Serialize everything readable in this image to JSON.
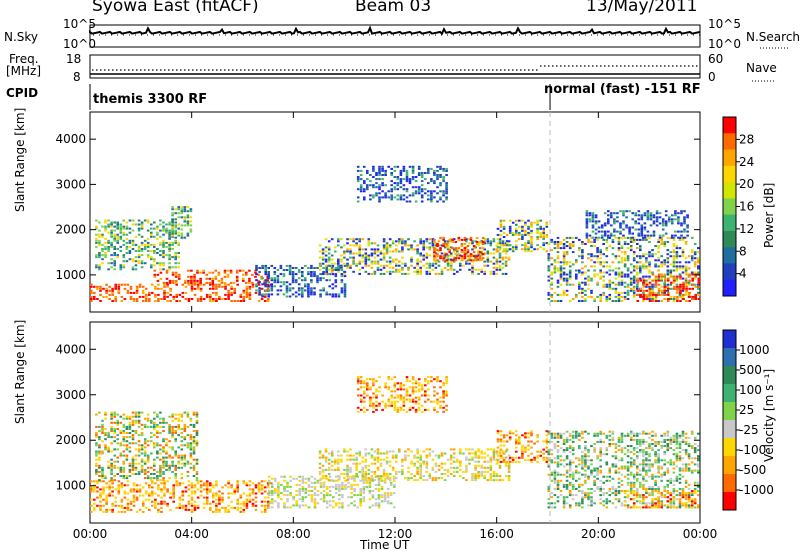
{
  "header": {
    "title": "Syowa East (fitACF)",
    "beam": "Beam 03",
    "date": "13/May/2011"
  },
  "panels": {
    "nsky": {
      "label": "N.Sky",
      "ticks": [
        "10^5",
        "10^0"
      ]
    },
    "nsearch": {
      "label": "N.Search",
      "ticks": [
        "10^5",
        "10^0"
      ]
    },
    "freq": {
      "label_line1": "Freq.",
      "label_line2": "[MHz]",
      "ticks": [
        "18",
        "8"
      ]
    },
    "nave": {
      "label": "Nave",
      "ticks": [
        "60",
        "0"
      ]
    },
    "cpid": {
      "label": "CPID",
      "segments": [
        "themis 3300 RF",
        "normal (fast) -151 RF"
      ]
    }
  },
  "chart_data": [
    {
      "type": "heatmap",
      "name": "power",
      "xlabel": "Time UT",
      "ylabel": "Slant Range [km]",
      "x_ticks": [
        "00:00",
        "04:00",
        "08:00",
        "12:00",
        "16:00",
        "20:00",
        "00:00"
      ],
      "xlim_hours": [
        0,
        24
      ],
      "y_ticks": [
        1000,
        2000,
        3000,
        4000
      ],
      "ylim": [
        180,
        4600
      ],
      "mode_change_hour": 18.1,
      "colorbar": {
        "label": "Power [dB]",
        "ticks": [
          "28",
          "24",
          "20",
          "16",
          "12",
          "8",
          "4"
        ],
        "colors": [
          "#ff0000",
          "#ff6a00",
          "#ffa500",
          "#ffd700",
          "#d2e600",
          "#7fd24a",
          "#3cb371",
          "#2e8b57",
          "#1e6fa0",
          "#1f3fbf",
          "#2020ff"
        ]
      },
      "regions": [
        {
          "t0": 0.0,
          "t1": 7.2,
          "r0": 400,
          "r1": 800,
          "level": "high"
        },
        {
          "t0": 2.5,
          "t1": 7.0,
          "r0": 800,
          "r1": 1100,
          "level": "high"
        },
        {
          "t0": 0.2,
          "t1": 3.5,
          "r0": 1100,
          "r1": 2200,
          "level": "mid"
        },
        {
          "t0": 3.2,
          "t1": 4.0,
          "r0": 1800,
          "r1": 2500,
          "level": "mid"
        },
        {
          "t0": 6.5,
          "t1": 10.0,
          "r0": 500,
          "r1": 1200,
          "level": "low"
        },
        {
          "t0": 9.0,
          "t1": 16.5,
          "r0": 1000,
          "r1": 1800,
          "level": "mixed"
        },
        {
          "t0": 13.5,
          "t1": 15.5,
          "r0": 1300,
          "r1": 1800,
          "level": "high"
        },
        {
          "t0": 16.0,
          "t1": 18.0,
          "r0": 1500,
          "r1": 2200,
          "level": "mixed"
        },
        {
          "t0": 10.5,
          "t1": 14.0,
          "r0": 2600,
          "r1": 3400,
          "level": "low"
        },
        {
          "t0": 18.0,
          "t1": 24.0,
          "r0": 400,
          "r1": 1800,
          "level": "mixed"
        },
        {
          "t0": 21.5,
          "t1": 24.0,
          "r0": 400,
          "r1": 1000,
          "level": "high"
        },
        {
          "t0": 19.5,
          "t1": 23.5,
          "r0": 1800,
          "r1": 2400,
          "level": "low"
        }
      ]
    },
    {
      "type": "heatmap",
      "name": "velocity",
      "xlabel": "Time UT",
      "ylabel": "Slant Range [km]",
      "x_ticks": [
        "00:00",
        "04:00",
        "08:00",
        "12:00",
        "16:00",
        "20:00",
        "00:00"
      ],
      "xlim_hours": [
        0,
        24
      ],
      "y_ticks": [
        1000,
        2000,
        3000,
        4000
      ],
      "ylim": [
        180,
        4600
      ],
      "colorbar": {
        "label": "Velocity [m s⁻¹]",
        "ticks": [
          "1000",
          "500",
          "100",
          "25",
          "-25",
          "-100",
          "-500",
          "-1000"
        ],
        "colors": [
          "#2030d0",
          "#2e6fb0",
          "#2e8b57",
          "#3cb371",
          "#7fd24a",
          "#c8c8c8",
          "#ffd700",
          "#ffa500",
          "#ff6a00",
          "#ff0000"
        ]
      },
      "regions": [
        {
          "t0": 0.0,
          "t1": 7.2,
          "r0": 400,
          "r1": 1100,
          "level": "orange"
        },
        {
          "t0": 0.2,
          "t1": 4.2,
          "r0": 1100,
          "r1": 2600,
          "level": "mixed"
        },
        {
          "t0": 7.0,
          "t1": 12.0,
          "r0": 500,
          "r1": 1200,
          "level": "grey"
        },
        {
          "t0": 9.0,
          "t1": 16.5,
          "r0": 1100,
          "r1": 1800,
          "level": "yellow"
        },
        {
          "t0": 16.0,
          "t1": 18.0,
          "r0": 1500,
          "r1": 2200,
          "level": "orange"
        },
        {
          "t0": 10.5,
          "t1": 14.0,
          "r0": 2600,
          "r1": 3400,
          "level": "orange"
        },
        {
          "t0": 18.0,
          "t1": 24.0,
          "r0": 500,
          "r1": 2200,
          "level": "green"
        },
        {
          "t0": 21.0,
          "t1": 24.0,
          "r0": 500,
          "r1": 900,
          "level": "orange"
        }
      ]
    }
  ]
}
